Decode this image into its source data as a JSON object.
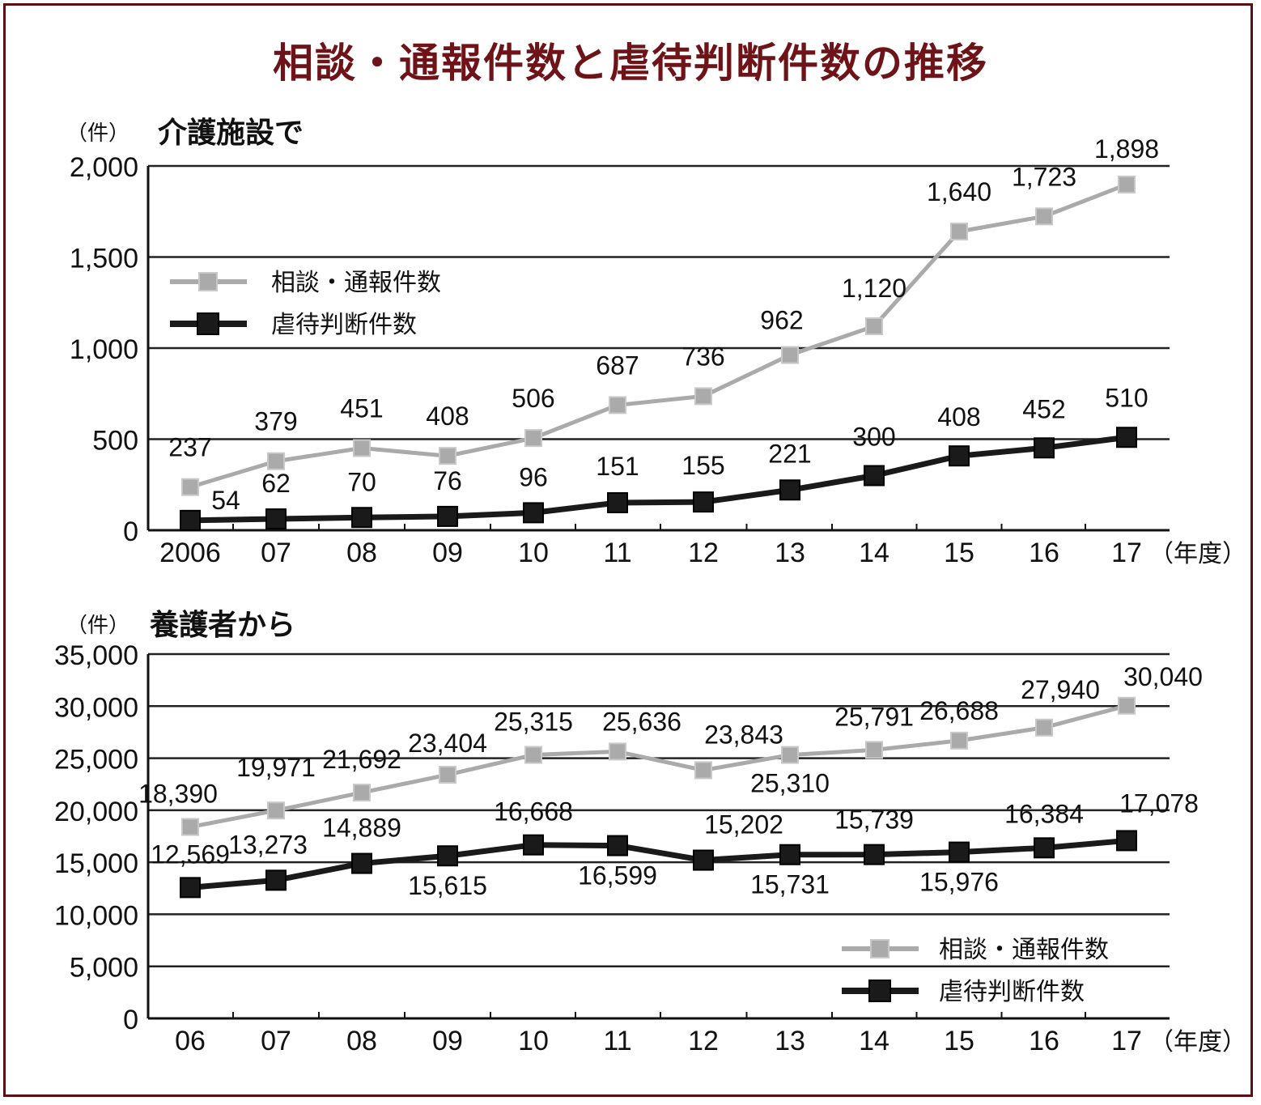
{
  "title": "相談・通報件数と虐待判断件数の推移",
  "colors": {
    "consult": "#aaaaaa",
    "abuse": "#1a1a1a",
    "title": "#6e1419",
    "frame": "#5a0f14"
  },
  "chart_data": [
    {
      "type": "line",
      "title": "介護施設で",
      "unit_label": "（件）",
      "x_suffix": "（年度）",
      "categories": [
        "2006",
        "07",
        "08",
        "09",
        "10",
        "11",
        "12",
        "13",
        "14",
        "15",
        "16",
        "17"
      ],
      "yticks": [
        "0",
        "500",
        "1,000",
        "1,500",
        "2,000"
      ],
      "ylim": [
        0,
        2000
      ],
      "legend_position": "left",
      "series": [
        {
          "name": "相談・通報件数",
          "values": [
            237,
            379,
            451,
            408,
            506,
            687,
            736,
            962,
            1120,
            1640,
            1723,
            1898
          ],
          "labels": [
            "237",
            "379",
            "451",
            "408",
            "506",
            "687",
            "736",
            "962",
            "1,120",
            "1,640",
            "1,723",
            "1,898"
          ]
        },
        {
          "name": "虐待判断件数",
          "values": [
            54,
            62,
            70,
            76,
            96,
            151,
            155,
            221,
            300,
            408,
            452,
            510
          ],
          "labels": [
            "54",
            "62",
            "70",
            "76",
            "96",
            "151",
            "155",
            "221",
            "300",
            "408",
            "452",
            "510"
          ]
        }
      ]
    },
    {
      "type": "line",
      "title": "養護者から",
      "unit_label": "（件）",
      "x_suffix": "（年度）",
      "categories": [
        "06",
        "07",
        "08",
        "09",
        "10",
        "11",
        "12",
        "13",
        "14",
        "15",
        "16",
        "17"
      ],
      "yticks": [
        "0",
        "5,000",
        "10,000",
        "15,000",
        "20,000",
        "25,000",
        "30,000",
        "35,000"
      ],
      "ylim": [
        0,
        35000
      ],
      "legend_position": "bottom-right",
      "series": [
        {
          "name": "相談・通報件数",
          "values": [
            18390,
            19971,
            21692,
            23404,
            25315,
            25636,
            23843,
            25310,
            25791,
            26688,
            27940,
            30040
          ],
          "labels": [
            "18,390",
            "19,971",
            "21,692",
            "23,404",
            "25,315",
            "25,636",
            "23,843",
            "25,310",
            "25,791",
            "26,688",
            "27,940",
            "30,040"
          ]
        },
        {
          "name": "虐待判断件数",
          "values": [
            12569,
            13273,
            14889,
            15615,
            16668,
            16599,
            15202,
            15731,
            15739,
            15976,
            16384,
            17078
          ],
          "labels": [
            "12,569",
            "13,273",
            "14,889",
            "15,615",
            "16,668",
            "16,599",
            "15,202",
            "15,731",
            "15,739",
            "15,976",
            "16,384",
            "17,078"
          ]
        }
      ]
    }
  ]
}
